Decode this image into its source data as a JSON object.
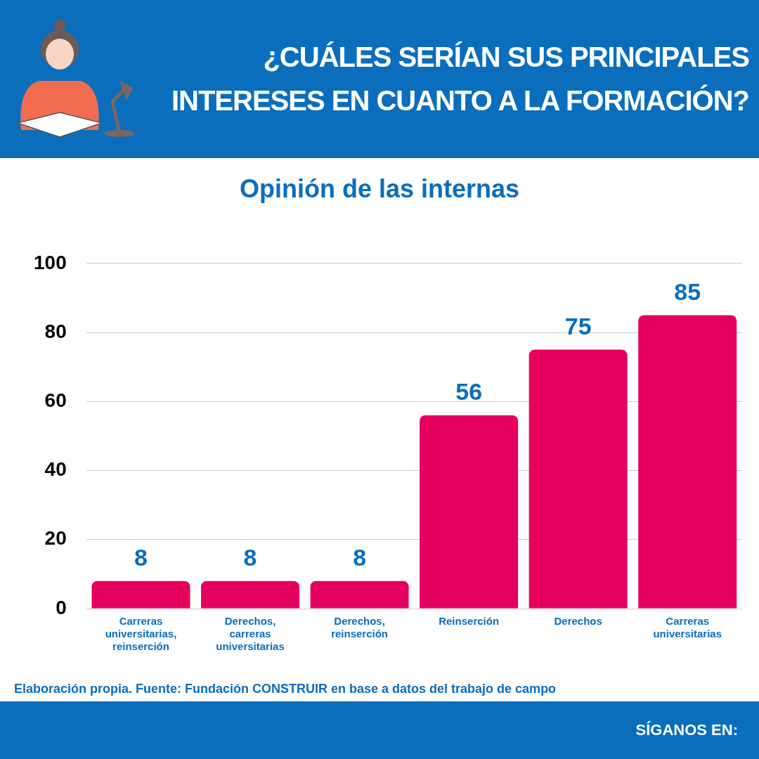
{
  "chart_data": {
    "type": "bar",
    "title": "¿CUÁLES SERÍAN SUS PRINCIPALES INTERESES EN CUANTO A LA FORMACIÓN?",
    "subtitle": "Opinión de las internas",
    "categories": [
      "Carreras universitarias, reinserción",
      "Derechos, carreras universitarias",
      "Derechos, reinserción",
      "Reinserción",
      "Derechos",
      "Carreras universitarias"
    ],
    "values": [
      8,
      8,
      8,
      56,
      75,
      85
    ],
    "color": "#e5005f",
    "ylim": [
      0,
      100
    ],
    "yticks": [
      0,
      20,
      40,
      60,
      80,
      100
    ],
    "grid": "y",
    "data_labels": true,
    "legend": false,
    "annotations": [
      "Elaboración propia. Fuente: Fundación CONSTRUIR en base a datos del trabajo de campo",
      "SÍGANOS EN:"
    ]
  }
}
